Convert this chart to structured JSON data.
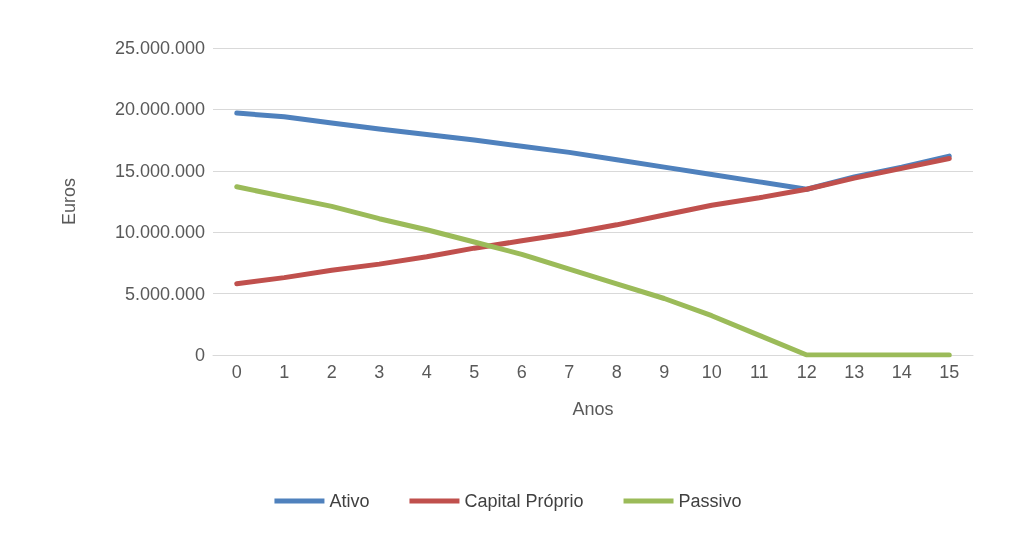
{
  "chart_data": {
    "type": "line",
    "xlabel": "Anos",
    "ylabel": "Euros",
    "x": [
      0,
      1,
      2,
      3,
      4,
      5,
      6,
      7,
      8,
      9,
      10,
      11,
      12,
      13,
      14,
      15
    ],
    "xlim": [
      -0.5,
      15.5
    ],
    "xticks": [
      0,
      1,
      2,
      3,
      4,
      5,
      6,
      7,
      8,
      9,
      10,
      11,
      12,
      13,
      14,
      15
    ],
    "series": [
      {
        "name": "Ativo",
        "color": "#4f81bd",
        "values": [
          19700000,
          19400000,
          18900000,
          18400000,
          17950000,
          17500000,
          17000000,
          16500000,
          15900000,
          15300000,
          14700000,
          14100000,
          13500000,
          14500000,
          15300000,
          16200000
        ]
      },
      {
        "name": "Capital Próprio",
        "color": "#c0504d",
        "values": [
          5800000,
          6300000,
          6900000,
          7400000,
          8000000,
          8700000,
          9300000,
          9900000,
          10600000,
          11400000,
          12200000,
          12800000,
          13500000,
          14400000,
          15200000,
          16000000
        ]
      },
      {
        "name": "Passivo",
        "color": "#9bbb59",
        "values": [
          13700000,
          12900000,
          12100000,
          11100000,
          10200000,
          9200000,
          8200000,
          7000000,
          5800000,
          4600000,
          3200000,
          1600000,
          0,
          0,
          0,
          0
        ]
      }
    ],
    "ylim": [
      0,
      25000000
    ],
    "yticks": [
      {
        "value": 0,
        "label": "0"
      },
      {
        "value": 5000000,
        "label": "5.000.000"
      },
      {
        "value": 10000000,
        "label": "10.000.000"
      },
      {
        "value": 15000000,
        "label": "15.000.000"
      },
      {
        "value": 20000000,
        "label": "20.000.000"
      },
      {
        "value": 25000000,
        "label": "25.000.000"
      }
    ],
    "grid": "y",
    "legend": "bottom",
    "marker": "none",
    "line_style": "solid"
  }
}
